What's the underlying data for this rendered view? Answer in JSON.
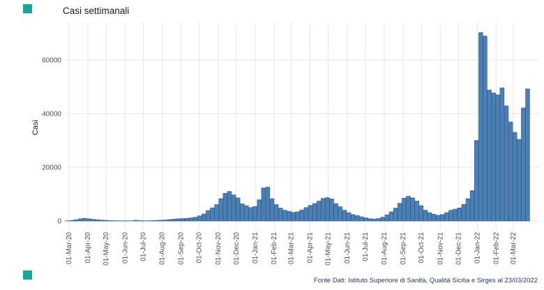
{
  "page": {
    "title": "Casi settimanali",
    "footer": "Fonte Dati: Istituto Superiore di Sanità, Qualità Sicilia e Sirges al 23/03/2022",
    "footer_color": "#223a66",
    "marker_color": "#14a79c"
  },
  "chart_data": {
    "type": "bar",
    "title": "Casi settimanali",
    "xlabel": "",
    "ylabel": "Casi",
    "series_name": "Casi settimanali",
    "interval": "weekly",
    "grid": true,
    "legend": "none",
    "ylim": [
      0,
      73500
    ],
    "yticks": [
      0,
      20000,
      40000,
      60000
    ],
    "xticks": [
      {
        "label": "01-Mar-20",
        "date": "2020-03-01"
      },
      {
        "label": "01-Apr-20",
        "date": "2020-04-01"
      },
      {
        "label": "01-May-20",
        "date": "2020-05-01"
      },
      {
        "label": "01-Jun-20",
        "date": "2020-06-01"
      },
      {
        "label": "01-Jul-20",
        "date": "2020-07-01"
      },
      {
        "label": "01-Aug-20",
        "date": "2020-08-01"
      },
      {
        "label": "01-Sep-20",
        "date": "2020-09-01"
      },
      {
        "label": "01-Oct-20",
        "date": "2020-10-01"
      },
      {
        "label": "01-Nov-20",
        "date": "2020-11-01"
      },
      {
        "label": "01-Dec-20",
        "date": "2020-12-01"
      },
      {
        "label": "01-Jan-21",
        "date": "2021-01-01"
      },
      {
        "label": "01-Feb-21",
        "date": "2021-02-01"
      },
      {
        "label": "01-Mar-21",
        "date": "2021-03-01"
      },
      {
        "label": "01-Apr-21",
        "date": "2021-04-01"
      },
      {
        "label": "01-May-21",
        "date": "2021-05-01"
      },
      {
        "label": "01-Jun-21",
        "date": "2021-06-01"
      },
      {
        "label": "01-Jul-21",
        "date": "2021-07-01"
      },
      {
        "label": "01-Aug-21",
        "date": "2021-08-01"
      },
      {
        "label": "01-Sep-21",
        "date": "2021-09-01"
      },
      {
        "label": "01-Oct-21",
        "date": "2021-10-01"
      },
      {
        "label": "01-Nov-21",
        "date": "2021-11-01"
      },
      {
        "label": "01-Dec-21",
        "date": "2021-12-01"
      },
      {
        "label": "01-Jan-22",
        "date": "2022-01-01"
      },
      {
        "label": "01-Feb-22",
        "date": "2022-02-01"
      },
      {
        "label": "01-Mar-22",
        "date": "2022-03-01"
      }
    ],
    "x": [
      "2020-02-24",
      "2020-03-02",
      "2020-03-09",
      "2020-03-16",
      "2020-03-23",
      "2020-03-30",
      "2020-04-06",
      "2020-04-13",
      "2020-04-20",
      "2020-04-27",
      "2020-05-04",
      "2020-05-11",
      "2020-05-18",
      "2020-05-25",
      "2020-06-01",
      "2020-06-08",
      "2020-06-15",
      "2020-06-22",
      "2020-06-29",
      "2020-07-06",
      "2020-07-13",
      "2020-07-20",
      "2020-07-27",
      "2020-08-03",
      "2020-08-10",
      "2020-08-17",
      "2020-08-24",
      "2020-08-31",
      "2020-09-07",
      "2020-09-14",
      "2020-09-21",
      "2020-09-28",
      "2020-10-05",
      "2020-10-12",
      "2020-10-19",
      "2020-10-26",
      "2020-11-02",
      "2020-11-09",
      "2020-11-16",
      "2020-11-23",
      "2020-11-30",
      "2020-12-07",
      "2020-12-14",
      "2020-12-21",
      "2020-12-28",
      "2021-01-04",
      "2021-01-11",
      "2021-01-18",
      "2021-01-25",
      "2021-02-01",
      "2021-02-08",
      "2021-02-15",
      "2021-02-22",
      "2021-03-01",
      "2021-03-08",
      "2021-03-15",
      "2021-03-22",
      "2021-03-29",
      "2021-04-05",
      "2021-04-12",
      "2021-04-19",
      "2021-04-26",
      "2021-05-03",
      "2021-05-10",
      "2021-05-17",
      "2021-05-24",
      "2021-05-31",
      "2021-06-07",
      "2021-06-14",
      "2021-06-21",
      "2021-06-28",
      "2021-07-05",
      "2021-07-12",
      "2021-07-19",
      "2021-07-26",
      "2021-08-02",
      "2021-08-09",
      "2021-08-16",
      "2021-08-23",
      "2021-08-30",
      "2021-09-06",
      "2021-09-13",
      "2021-09-20",
      "2021-09-27",
      "2021-10-04",
      "2021-10-11",
      "2021-10-18",
      "2021-10-25",
      "2021-11-01",
      "2021-11-08",
      "2021-11-15",
      "2021-11-22",
      "2021-11-29",
      "2021-12-06",
      "2021-12-13",
      "2021-12-20",
      "2021-12-27",
      "2022-01-03",
      "2022-01-10",
      "2022-01-17",
      "2022-01-24",
      "2022-01-31",
      "2022-02-07",
      "2022-02-14",
      "2022-02-21",
      "2022-02-28",
      "2022-03-07",
      "2022-03-14",
      "2022-03-21"
    ],
    "values": [
      60,
      160,
      450,
      800,
      1000,
      820,
      620,
      460,
      340,
      240,
      150,
      100,
      70,
      45,
      35,
      60,
      260,
      120,
      70,
      90,
      130,
      180,
      280,
      380,
      520,
      680,
      800,
      900,
      1000,
      1150,
      1400,
      1900,
      2600,
      3900,
      4900,
      6100,
      8300,
      10300,
      11000,
      9700,
      8600,
      6400,
      5700,
      5000,
      5400,
      7900,
      12300,
      12600,
      8300,
      6100,
      4800,
      4000,
      3600,
      3200,
      3400,
      4100,
      5000,
      5800,
      6500,
      7400,
      8400,
      8700,
      8200,
      6500,
      5300,
      4000,
      3100,
      2400,
      2000,
      1550,
      1200,
      860,
      700,
      900,
      1400,
      2300,
      3400,
      4800,
      6600,
      8500,
      9200,
      8600,
      7400,
      5700,
      4000,
      3100,
      2500,
      2100,
      2400,
      3100,
      4000,
      4400,
      4850,
      6150,
      8300,
      11300,
      30000,
      70200,
      68900,
      48800,
      47700,
      47000,
      49600,
      42900,
      36900,
      33000,
      30400,
      42100,
      49200
    ],
    "bar_color": "#4d7fb4",
    "bar_border_color": "#305f90",
    "grid_color": "#e6e6e6",
    "axis_text_color": "#4d4d4d"
  }
}
